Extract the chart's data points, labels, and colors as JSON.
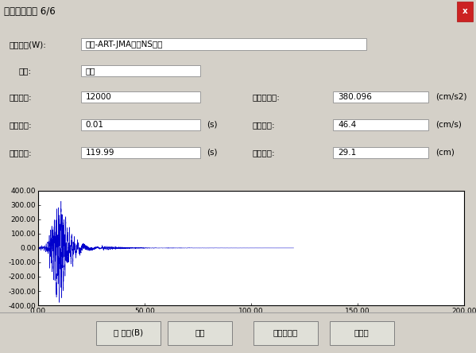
{
  "title_bar": "地震波の情報 6/6",
  "title_bar_bg": "#6b9dd6",
  "dialog_bg": "#d4d0c8",
  "field_label_1": "地震波名(W):",
  "field_value_1": "極稀-ART-JMA神戸NS位相",
  "field_label_2": "種別:",
  "field_value_2": "共通",
  "field_label_3": "データ数:",
  "field_value_3": "12000",
  "field_label_4": "時間間隔:",
  "field_value_4": "0.01",
  "field_unit_4": "(s)",
  "field_label_5": "継続時間:",
  "field_value_5": "119.99",
  "field_unit_5": "(s)",
  "field_label_6": "最大加速度:",
  "field_value_6": "380.096",
  "field_unit_6": "(cm/s2)",
  "field_label_7": "最大速度:",
  "field_value_7": "46.4",
  "field_unit_7": "(cm/s)",
  "field_label_8": "最大変位:",
  "field_value_8": "29.1",
  "field_unit_8": "(cm)",
  "plot_xlim": [
    0,
    200
  ],
  "plot_ylim": [
    -400,
    400
  ],
  "plot_xticks": [
    0,
    50,
    100,
    150,
    200
  ],
  "plot_yticks": [
    -400,
    -300,
    -200,
    -100,
    0,
    100,
    200,
    300,
    400
  ],
  "plot_xtick_labels": [
    "0.00",
    "50.00",
    "100.00",
    "150.00",
    "200.00"
  ],
  "plot_ytick_labels": [
    "-400.00",
    "-300.00",
    "-200.00",
    "-100.00",
    "0.00",
    "100.00",
    "200.00",
    "300.00",
    "400.00"
  ],
  "wave_color": "#0000cc",
  "wave_dt": 0.01,
  "wave_n": 12000,
  "button_labels": [
    "＜ 戻る(B)",
    "完了",
    "キャンセル",
    "ヘルプ"
  ],
  "close_button_color": "#cc2222",
  "box_edge_color": "#999999",
  "box_face_color": "#f0f0f0"
}
